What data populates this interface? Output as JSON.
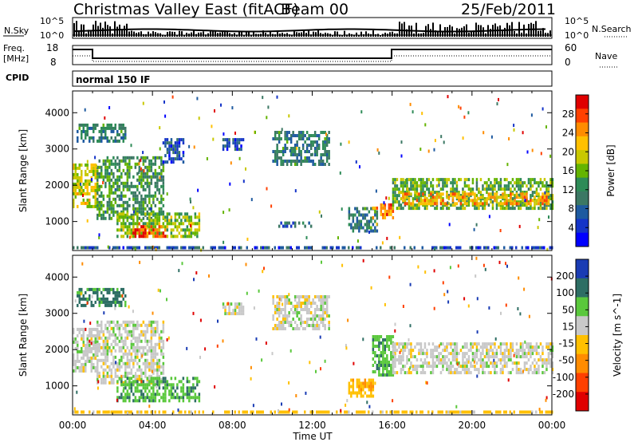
{
  "header": {
    "station": "Christmas Valley East (fitACF)",
    "beam": "Beam 00",
    "date": "25/Feb/2011"
  },
  "nsky_panel": {
    "left_label": "N.Sky",
    "left_ticks": [
      "10^5",
      "10^0"
    ],
    "right_ticks": [
      "10^5",
      "10^0"
    ],
    "right_label": "N.Search"
  },
  "freq_panel": {
    "left_label_line1": "Freq.",
    "left_label_line2": "[MHz]",
    "left_ticks": [
      "18",
      "8"
    ],
    "right_ticks": [
      "60",
      "0"
    ],
    "right_label": "Nave"
  },
  "cpid_panel": {
    "label": "CPID",
    "program": "normal 150 IF"
  },
  "power_panel": {
    "ylabel": "Slant Range [km]",
    "colorbar_label": "Power [dB]",
    "colorbar_ticks": [
      "28",
      "24",
      "20",
      "16",
      "12",
      "8",
      "4"
    ],
    "colorbar_colors": [
      "#e00000",
      "#ff4000",
      "#ff8c00",
      "#ffc000",
      "#c8c800",
      "#64b400",
      "#2e8b57",
      "#3c7864",
      "#1e5aa0",
      "#1434c8",
      "#0000ff"
    ]
  },
  "velocity_panel": {
    "ylabel": "Slant Range [km]",
    "colorbar_label": "Velocity [m s^-1]",
    "colorbar_ticks": [
      "200",
      "100",
      "50",
      "15",
      "-15",
      "-50",
      "-100",
      "-200"
    ],
    "colorbar_colors": [
      "#1a3cb4",
      "#2e6e64",
      "#5ac83c",
      "#c8c8c8",
      "#ffc000",
      "#ff8c00",
      "#ff4000",
      "#e00000"
    ]
  },
  "x_axis": {
    "label": "Time UT",
    "ticks": [
      "00:00",
      "04:00",
      "08:00",
      "12:00",
      "16:00",
      "20:00",
      "00:00"
    ]
  },
  "chart_data": [
    {
      "type": "heatmap",
      "title": "Power",
      "x": "Time UT (hours)",
      "xlim": [
        0,
        24
      ],
      "ylim": [
        200,
        4600
      ],
      "yticks": [
        1000,
        2000,
        3000,
        4000
      ],
      "colorbar": {
        "label": "Power [dB]",
        "ticks": [
          4,
          8,
          12,
          16,
          20,
          24,
          28
        ],
        "range": [
          0,
          30
        ]
      },
      "regions": [
        {
          "t": [
            0.0,
            1.2
          ],
          "r": [
            1400,
            2600
          ],
          "db": 18
        },
        {
          "t": [
            1.2,
            4.5
          ],
          "r": [
            1100,
            2800
          ],
          "db": 12
        },
        {
          "t": [
            2.2,
            6.3
          ],
          "r": [
            550,
            1250
          ],
          "db": 16
        },
        {
          "t": [
            3.0,
            4.6
          ],
          "r": [
            600,
            900
          ],
          "db": 26
        },
        {
          "t": [
            0.2,
            2.6
          ],
          "r": [
            3200,
            3700
          ],
          "db": 10
        },
        {
          "t": [
            4.5,
            5.5
          ],
          "r": [
            2600,
            3300
          ],
          "db": 6
        },
        {
          "t": [
            7.5,
            8.5
          ],
          "r": [
            3000,
            3300
          ],
          "db": 6
        },
        {
          "t": [
            10.0,
            12.8
          ],
          "r": [
            2600,
            3500
          ],
          "db": 10
        },
        {
          "t": [
            10.3,
            12.0
          ],
          "r": [
            850,
            1000
          ],
          "db": 8
        },
        {
          "t": [
            13.8,
            15.2
          ],
          "r": [
            700,
            1400
          ],
          "db": 10
        },
        {
          "t": [
            15.0,
            16.0
          ],
          "r": [
            1100,
            1500
          ],
          "db": 24
        },
        {
          "t": [
            16.0,
            24.0
          ],
          "r": [
            1400,
            2200
          ],
          "db": 14
        },
        {
          "t": [
            16.5,
            23.8
          ],
          "r": [
            1450,
            1800
          ],
          "db": 22
        },
        {
          "t": [
            0.0,
            24.0
          ],
          "r": [
            250,
            320
          ],
          "db": 6
        }
      ]
    },
    {
      "type": "heatmap",
      "title": "Velocity",
      "x": "Time UT (hours)",
      "xlim": [
        0,
        24
      ],
      "ylim": [
        200,
        4600
      ],
      "yticks": [
        1000,
        2000,
        3000,
        4000
      ],
      "colorbar": {
        "label": "Velocity [m s^-1]",
        "ticks": [
          -200,
          -100,
          -50,
          -15,
          15,
          50,
          100,
          200
        ]
      },
      "regions": [
        {
          "t": [
            0.0,
            1.2
          ],
          "r": [
            1400,
            2600
          ],
          "v": 0
        },
        {
          "t": [
            1.2,
            4.5
          ],
          "r": [
            1100,
            2800
          ],
          "v": 0
        },
        {
          "t": [
            2.2,
            6.3
          ],
          "r": [
            600,
            1250
          ],
          "v": 40
        },
        {
          "t": [
            0.2,
            2.6
          ],
          "r": [
            3200,
            3700
          ],
          "v": 60
        },
        {
          "t": [
            7.5,
            8.5
          ],
          "r": [
            3000,
            3300
          ],
          "v": 0
        },
        {
          "t": [
            10.0,
            12.8
          ],
          "r": [
            2600,
            3500
          ],
          "v": 0
        },
        {
          "t": [
            13.8,
            15.0
          ],
          "r": [
            700,
            1200
          ],
          "v": -40
        },
        {
          "t": [
            15.0,
            16.0
          ],
          "r": [
            1300,
            2400
          ],
          "v": 40
        },
        {
          "t": [
            16.0,
            24.0
          ],
          "r": [
            1400,
            2200
          ],
          "v": 0
        },
        {
          "t": [
            0.0,
            24.0
          ],
          "r": [
            250,
            320
          ],
          "v": -30
        }
      ]
    }
  ]
}
